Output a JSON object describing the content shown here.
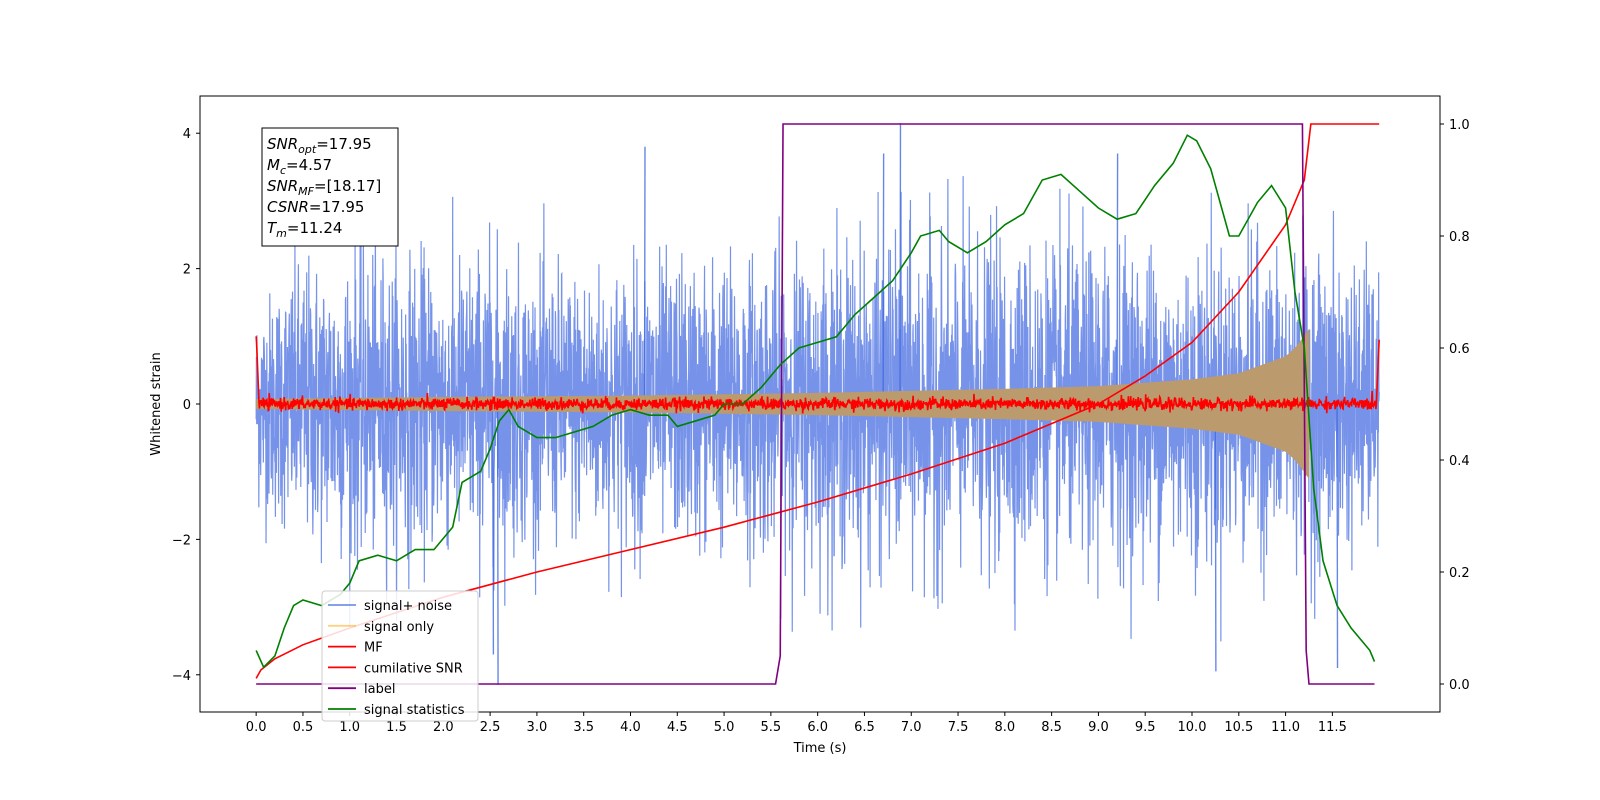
{
  "chart_data": {
    "type": "line",
    "xlabel": "Time (s)",
    "ylabel": "Whitened strain",
    "xlim": [
      -0.6,
      12.65
    ],
    "ylim": [
      -4.55,
      4.55
    ],
    "ylim_right": [
      -0.05,
      1.05
    ],
    "x_ticks": [
      0.0,
      0.5,
      1.0,
      1.5,
      2.0,
      2.5,
      3.0,
      3.5,
      4.0,
      4.5,
      5.0,
      5.5,
      6.0,
      6.5,
      7.0,
      7.5,
      8.0,
      8.5,
      9.0,
      9.5,
      10.0,
      10.5,
      11.0,
      11.5
    ],
    "x_tick_labels": [
      "0.0",
      "0.5",
      "1.0",
      "1.5",
      "2.0",
      "2.5",
      "3.0",
      "3.5",
      "4.0",
      "4.5",
      "5.0",
      "5.5",
      "6.0",
      "6.5",
      "7.0",
      "7.5",
      "8.0",
      "8.5",
      "9.0",
      "9.5",
      "10.0",
      "10.5",
      "11.0",
      "11.5"
    ],
    "y_ticks": [
      -4,
      -2,
      0,
      2,
      4
    ],
    "y_tick_labels": [
      "−4",
      "−2",
      "0",
      "2",
      "4"
    ],
    "y_ticks_right": [
      0.0,
      0.2,
      0.4,
      0.6,
      0.8,
      1.0
    ],
    "y_tick_labels_right": [
      "0.0",
      "0.2",
      "0.4",
      "0.6",
      "0.8",
      "1.0"
    ],
    "grid": false,
    "legend_placement": "lower-left",
    "annotation": {
      "lines": [
        {
          "sym": "SNR",
          "sub": "opt",
          "rest": "=17.95"
        },
        {
          "sym": "M",
          "sub": "c",
          "rest": "=4.57"
        },
        {
          "sym": "SNR",
          "sub": "MF",
          "rest": "=[18.17]"
        },
        {
          "sym": "CSNR",
          "sub": "",
          "rest": "=17.95"
        },
        {
          "sym": "T",
          "sub": "m",
          "rest": "=11.24"
        }
      ]
    },
    "series": [
      {
        "name": "signal+ noise",
        "color": "#4169e1",
        "axis": "left",
        "style": "noise",
        "x_range": [
          0.0,
          12.0
        ],
        "envelope": [
          [
            0.0,
            2.6,
            -1.9
          ],
          [
            0.5,
            3.2,
            -3.0
          ],
          [
            1.0,
            3.3,
            -3.3
          ],
          [
            1.5,
            3.3,
            -3.2
          ],
          [
            2.0,
            3.0,
            -3.3
          ],
          [
            2.5,
            3.3,
            -3.5
          ],
          [
            3.0,
            3.0,
            -2.8
          ],
          [
            4.0,
            3.1,
            -3.0
          ],
          [
            5.0,
            3.2,
            -3.1
          ],
          [
            5.5,
            3.0,
            -3.5
          ],
          [
            6.0,
            3.5,
            -3.3
          ],
          [
            7.0,
            3.6,
            -3.6
          ],
          [
            8.0,
            3.4,
            -3.5
          ],
          [
            9.0,
            3.5,
            -3.4
          ],
          [
            10.0,
            3.3,
            -3.6
          ],
          [
            11.0,
            3.3,
            -3.3
          ],
          [
            11.5,
            3.2,
            -3.3
          ],
          [
            12.0,
            3.0,
            -2.8
          ]
        ],
        "spikes": [
          [
            2.58,
            -4.15
          ],
          [
            6.88,
            4.15
          ],
          [
            4.15,
            3.8
          ],
          [
            2.53,
            -3.7
          ],
          [
            11.55,
            -3.9
          ],
          [
            10.25,
            -3.95
          ],
          [
            6.7,
            3.7
          ],
          [
            9.2,
            3.7
          ]
        ]
      },
      {
        "name": "signal only",
        "color": "#ffa500",
        "axis": "left",
        "style": "chirp",
        "x_range": [
          0.0,
          11.25
        ],
        "envelope": [
          [
            0.0,
            0.07
          ],
          [
            2.0,
            0.1
          ],
          [
            4.0,
            0.12
          ],
          [
            6.0,
            0.16
          ],
          [
            8.0,
            0.22
          ],
          [
            9.0,
            0.26
          ],
          [
            10.0,
            0.36
          ],
          [
            10.5,
            0.45
          ],
          [
            11.0,
            0.7
          ],
          [
            11.1,
            0.82
          ],
          [
            11.2,
            1.0
          ],
          [
            11.25,
            1.1
          ]
        ]
      },
      {
        "name": "MF",
        "color": "#ff0000",
        "axis": "left",
        "style": "mf",
        "x_range": [
          0.0,
          12.0
        ],
        "start_value": 1.0,
        "end_value": 0.95
      },
      {
        "name": "cumilative SNR",
        "color": "#ff0000",
        "axis": "right",
        "points": [
          [
            0.0,
            0.01
          ],
          [
            0.05,
            0.025
          ],
          [
            0.2,
            0.045
          ],
          [
            0.5,
            0.07
          ],
          [
            1.0,
            0.1
          ],
          [
            2.0,
            0.155
          ],
          [
            3.0,
            0.2
          ],
          [
            4.0,
            0.24
          ],
          [
            5.0,
            0.28
          ],
          [
            6.0,
            0.325
          ],
          [
            7.0,
            0.375
          ],
          [
            8.0,
            0.43
          ],
          [
            9.0,
            0.5
          ],
          [
            9.5,
            0.55
          ],
          [
            10.0,
            0.61
          ],
          [
            10.5,
            0.7
          ],
          [
            11.0,
            0.82
          ],
          [
            11.2,
            0.9
          ],
          [
            11.27,
            1.0
          ],
          [
            12.0,
            1.0
          ]
        ]
      },
      {
        "name": "label",
        "color": "#800080",
        "axis": "right",
        "points": [
          [
            0.0,
            0.0
          ],
          [
            5.55,
            0.0
          ],
          [
            5.6,
            0.05
          ],
          [
            5.63,
            1.0
          ],
          [
            11.18,
            1.0
          ],
          [
            11.22,
            0.06
          ],
          [
            11.25,
            0.0
          ],
          [
            11.95,
            0.0
          ]
        ]
      },
      {
        "name": "signal statistics",
        "color": "#008000",
        "axis": "right",
        "points": [
          [
            0.0,
            0.06
          ],
          [
            0.08,
            0.03
          ],
          [
            0.2,
            0.05
          ],
          [
            0.3,
            0.1
          ],
          [
            0.4,
            0.14
          ],
          [
            0.5,
            0.15
          ],
          [
            0.7,
            0.14
          ],
          [
            0.9,
            0.16
          ],
          [
            1.0,
            0.18
          ],
          [
            1.1,
            0.22
          ],
          [
            1.3,
            0.23
          ],
          [
            1.5,
            0.22
          ],
          [
            1.7,
            0.24
          ],
          [
            1.9,
            0.24
          ],
          [
            2.1,
            0.28
          ],
          [
            2.2,
            0.36
          ],
          [
            2.4,
            0.38
          ],
          [
            2.5,
            0.42
          ],
          [
            2.6,
            0.47
          ],
          [
            2.7,
            0.49
          ],
          [
            2.8,
            0.46
          ],
          [
            3.0,
            0.44
          ],
          [
            3.2,
            0.44
          ],
          [
            3.4,
            0.45
          ],
          [
            3.6,
            0.46
          ],
          [
            3.8,
            0.48
          ],
          [
            4.0,
            0.49
          ],
          [
            4.2,
            0.48
          ],
          [
            4.4,
            0.48
          ],
          [
            4.5,
            0.46
          ],
          [
            4.7,
            0.47
          ],
          [
            4.9,
            0.48
          ],
          [
            5.0,
            0.5
          ],
          [
            5.2,
            0.5
          ],
          [
            5.4,
            0.53
          ],
          [
            5.5,
            0.55
          ],
          [
            5.6,
            0.57
          ],
          [
            5.8,
            0.6
          ],
          [
            6.0,
            0.61
          ],
          [
            6.2,
            0.62
          ],
          [
            6.4,
            0.66
          ],
          [
            6.6,
            0.69
          ],
          [
            6.8,
            0.72
          ],
          [
            7.0,
            0.77
          ],
          [
            7.1,
            0.8
          ],
          [
            7.3,
            0.81
          ],
          [
            7.4,
            0.79
          ],
          [
            7.6,
            0.77
          ],
          [
            7.8,
            0.79
          ],
          [
            8.0,
            0.82
          ],
          [
            8.2,
            0.84
          ],
          [
            8.4,
            0.9
          ],
          [
            8.6,
            0.91
          ],
          [
            8.8,
            0.88
          ],
          [
            9.0,
            0.85
          ],
          [
            9.2,
            0.83
          ],
          [
            9.4,
            0.84
          ],
          [
            9.6,
            0.89
          ],
          [
            9.8,
            0.93
          ],
          [
            9.95,
            0.98
          ],
          [
            10.05,
            0.97
          ],
          [
            10.2,
            0.92
          ],
          [
            10.4,
            0.8
          ],
          [
            10.5,
            0.8
          ],
          [
            10.7,
            0.86
          ],
          [
            10.85,
            0.89
          ],
          [
            11.0,
            0.85
          ],
          [
            11.1,
            0.7
          ],
          [
            11.2,
            0.6
          ],
          [
            11.3,
            0.35
          ],
          [
            11.4,
            0.22
          ],
          [
            11.55,
            0.14
          ],
          [
            11.7,
            0.1
          ],
          [
            11.9,
            0.06
          ],
          [
            11.95,
            0.04
          ]
        ]
      }
    ]
  }
}
